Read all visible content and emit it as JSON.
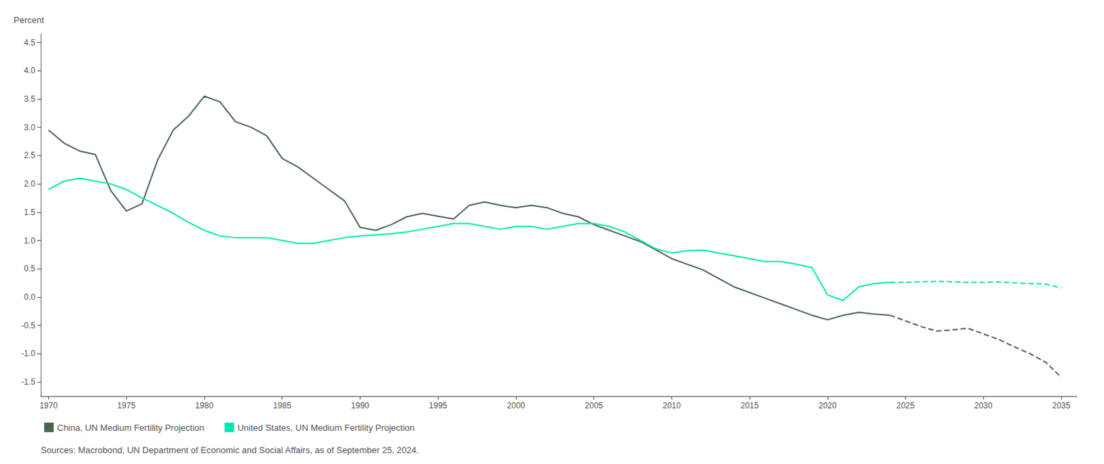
{
  "chart_data": {
    "type": "line",
    "ylabel": "Percent",
    "annotations": [
      "Sources: Macrobond, UN Department of Economic and Social Affairs, as of September 25, 2024."
    ],
    "series": [
      {
        "name": "China, UN Medium Fertility Projection",
        "color": "#4a6650",
        "line_style": "solid",
        "x": [
          1970,
          1971,
          1972,
          1973,
          1974,
          1975,
          1976,
          1977,
          1978,
          1979,
          1980,
          1981,
          1982,
          1983,
          1984,
          1985,
          1986,
          1987,
          1988,
          1989,
          1990,
          1991,
          1992,
          1993,
          1994,
          1995,
          1996,
          1997,
          1998,
          1999,
          2000,
          2001,
          2002,
          2003,
          2004,
          2005,
          2006,
          2007,
          2008,
          2009,
          2010,
          2011,
          2012,
          2013,
          2014,
          2015,
          2016,
          2017,
          2018,
          2019,
          2020,
          2021,
          2022,
          2023,
          2024
        ],
        "values": [
          2.95,
          2.72,
          2.58,
          2.52,
          1.88,
          1.52,
          1.65,
          2.42,
          2.95,
          3.2,
          3.55,
          3.45,
          3.1,
          3.0,
          2.85,
          2.45,
          2.3,
          2.1,
          1.9,
          1.7,
          1.23,
          1.18,
          1.28,
          1.42,
          1.48,
          1.43,
          1.38,
          1.62,
          1.68,
          1.62,
          1.58,
          1.62,
          1.58,
          1.48,
          1.42,
          1.28,
          1.18,
          1.08,
          0.98,
          0.83,
          0.68,
          0.58,
          0.48,
          0.33,
          0.18,
          0.08,
          -0.02,
          -0.12,
          -0.22,
          -0.32,
          -0.4,
          -0.32,
          -0.27,
          -0.3,
          -0.32
        ]
      },
      {
        "name": "China, UN Medium Fertility Projection",
        "color": "#4a6650",
        "line_style": "dashed",
        "x": [
          2024,
          2025,
          2026,
          2027,
          2028,
          2029,
          2030,
          2031,
          2032,
          2033,
          2034,
          2035
        ],
        "values": [
          -0.32,
          -0.42,
          -0.52,
          -0.6,
          -0.58,
          -0.55,
          -0.65,
          -0.75,
          -0.88,
          -1.0,
          -1.15,
          -1.42
        ]
      },
      {
        "name": "United States, UN Medium Fertility Projection",
        "color": "#00e8b0",
        "line_style": "solid",
        "x": [
          1970,
          1971,
          1972,
          1973,
          1974,
          1975,
          1976,
          1977,
          1978,
          1979,
          1980,
          1981,
          1982,
          1983,
          1984,
          1985,
          1986,
          1987,
          1988,
          1989,
          1990,
          1991,
          1992,
          1993,
          1994,
          1995,
          1996,
          1997,
          1998,
          1999,
          2000,
          2001,
          2002,
          2003,
          2004,
          2005,
          2006,
          2007,
          2008,
          2009,
          2010,
          2011,
          2012,
          2013,
          2014,
          2015,
          2016,
          2017,
          2018,
          2019,
          2020,
          2021,
          2022,
          2023,
          2024
        ],
        "values": [
          1.9,
          2.05,
          2.1,
          2.05,
          2.0,
          1.9,
          1.75,
          1.62,
          1.48,
          1.32,
          1.18,
          1.08,
          1.05,
          1.05,
          1.05,
          1.0,
          0.95,
          0.95,
          1.0,
          1.05,
          1.08,
          1.1,
          1.12,
          1.15,
          1.2,
          1.25,
          1.3,
          1.3,
          1.25,
          1.2,
          1.25,
          1.25,
          1.2,
          1.25,
          1.3,
          1.3,
          1.25,
          1.15,
          1.0,
          0.85,
          0.78,
          0.82,
          0.83,
          0.78,
          0.73,
          0.68,
          0.63,
          0.63,
          0.58,
          0.52,
          0.04,
          -0.06,
          0.18,
          0.24,
          0.26
        ]
      },
      {
        "name": "United States, UN Medium Fertility Projection",
        "color": "#00e8b0",
        "line_style": "dashed",
        "x": [
          2024,
          2025,
          2026,
          2027,
          2028,
          2029,
          2030,
          2031,
          2032,
          2033,
          2034,
          2035
        ],
        "values": [
          0.26,
          0.26,
          0.27,
          0.28,
          0.27,
          0.26,
          0.26,
          0.27,
          0.25,
          0.24,
          0.23,
          0.16
        ]
      }
    ],
    "xlim": [
      1969.5,
      2036
    ],
    "xticks": [
      1970,
      1975,
      1980,
      1985,
      1990,
      1995,
      2000,
      2005,
      2010,
      2015,
      2020,
      2025,
      2030,
      2035
    ],
    "ylim": [
      -1.75,
      4.65
    ],
    "yticks": [
      -1.5,
      {
        "value": -1.0,
        "label": "-1.0"
      },
      -0.5,
      {
        "value": 0.0,
        "label": "0.0"
      },
      0.5,
      {
        "value": 1.0,
        "label": "1.0"
      },
      1.5,
      {
        "value": 2.0,
        "label": "2.0"
      },
      2.5,
      {
        "value": 3.0,
        "label": "3.0"
      },
      3.5,
      {
        "value": 4.0,
        "label": "4.0"
      },
      4.5
    ],
    "grid": false,
    "legend": "bottom"
  }
}
